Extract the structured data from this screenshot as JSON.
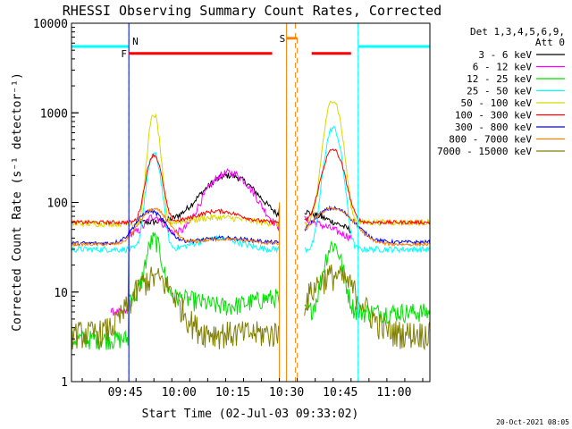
{
  "chart_data": {
    "type": "line",
    "title": "RHESSI Observing Summary Count Rates, Corrected",
    "xlabel": "Start Time (02-Jul-03 09:33:02)",
    "ylabel": "Corrected Count Rate (s⁻¹ detector⁻¹)",
    "yscale": "log",
    "ylim": [
      1,
      10000
    ],
    "xlim_min": [
      -3,
      97
    ],
    "x_tick_labels": [
      "09:45",
      "10:00",
      "10:15",
      "10:30",
      "10:45",
      "11:00"
    ],
    "x_tick_minutes": [
      12,
      27,
      42,
      57,
      72,
      87
    ],
    "y_tick_labels": [
      "1",
      "10",
      "100",
      "1000",
      "10000"
    ],
    "y_tick_values": [
      1,
      10,
      100,
      1000,
      10000
    ],
    "legend_title": "Det 1,3,4,5,6,9,",
    "legend_subtitle": "Att 0",
    "series": [
      {
        "name": "3 - 6 keV",
        "color": "#000000"
      },
      {
        "name": "6 - 12 keV",
        "color": "#ff00ff"
      },
      {
        "name": "12 - 25 keV",
        "color": "#00e000"
      },
      {
        "name": "25 - 50 keV",
        "color": "#00ffff"
      },
      {
        "name": "50 - 100 keV",
        "color": "#d8d800"
      },
      {
        "name": "100 - 300 keV",
        "color": "#ff0000"
      },
      {
        "name": "300 - 800 keV",
        "color": "#0000ff"
      },
      {
        "name": "800 - 7000 keV",
        "color": "#ff8000"
      },
      {
        "name": "7000 - 15000 keV",
        "color": "#808000"
      }
    ],
    "annotations": {
      "night_label": "N",
      "flare_label": "F",
      "saa_label": "S",
      "night_intervals_min": [
        [
          -3,
          13
        ],
        [
          77,
          97
        ]
      ],
      "flare_intervals_min": [
        [
          13,
          53
        ],
        [
          64,
          75
        ]
      ],
      "saa_interval_min": [
        [
          57,
          60
        ]
      ],
      "night_level": 5500,
      "flare_level": 4600,
      "saa_level": 6800,
      "gap_min": [
        55,
        62
      ]
    },
    "timestamp": "20-Oct-2021 08:05"
  }
}
